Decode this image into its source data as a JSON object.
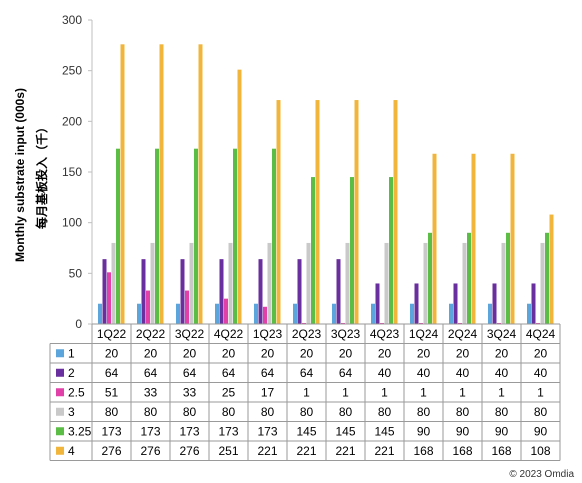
{
  "chart_data": {
    "type": "bar",
    "ylabel": "Monthly substrate input (000s)",
    "ylabel_secondary": "每月基板投入（千）",
    "ylim": [
      0,
      300
    ],
    "yticks": [
      0,
      50,
      100,
      150,
      200,
      250,
      300
    ],
    "categories": [
      "1Q22",
      "2Q22",
      "3Q22",
      "4Q22",
      "1Q23",
      "2Q23",
      "3Q23",
      "4Q23",
      "1Q24",
      "2Q24",
      "3Q24",
      "4Q24"
    ],
    "legend_placement": "table-below",
    "series": [
      {
        "name": "1",
        "color": "#5ba5dc",
        "values": [
          20,
          20,
          20,
          20,
          20,
          20,
          20,
          20,
          20,
          20,
          20,
          20
        ]
      },
      {
        "name": "2",
        "color": "#6a2f9e",
        "values": [
          64,
          64,
          64,
          64,
          64,
          64,
          64,
          40,
          40,
          40,
          40,
          40
        ]
      },
      {
        "name": "2.5",
        "color": "#e040a8",
        "values": [
          51,
          33,
          33,
          25,
          17,
          1,
          1,
          1,
          1,
          1,
          1,
          1
        ]
      },
      {
        "name": "3",
        "color": "#c9c9c9",
        "values": [
          80,
          80,
          80,
          80,
          80,
          80,
          80,
          80,
          80,
          80,
          80,
          80
        ]
      },
      {
        "name": "3.25",
        "color": "#5bbd45",
        "values": [
          173,
          173,
          173,
          173,
          173,
          145,
          145,
          145,
          90,
          90,
          90,
          90
        ]
      },
      {
        "name": "4",
        "color": "#f0b53a",
        "values": [
          276,
          276,
          276,
          251,
          221,
          221,
          221,
          221,
          168,
          168,
          168,
          108
        ]
      }
    ]
  },
  "footer": {
    "copyright": "© 2023 Omdia"
  }
}
